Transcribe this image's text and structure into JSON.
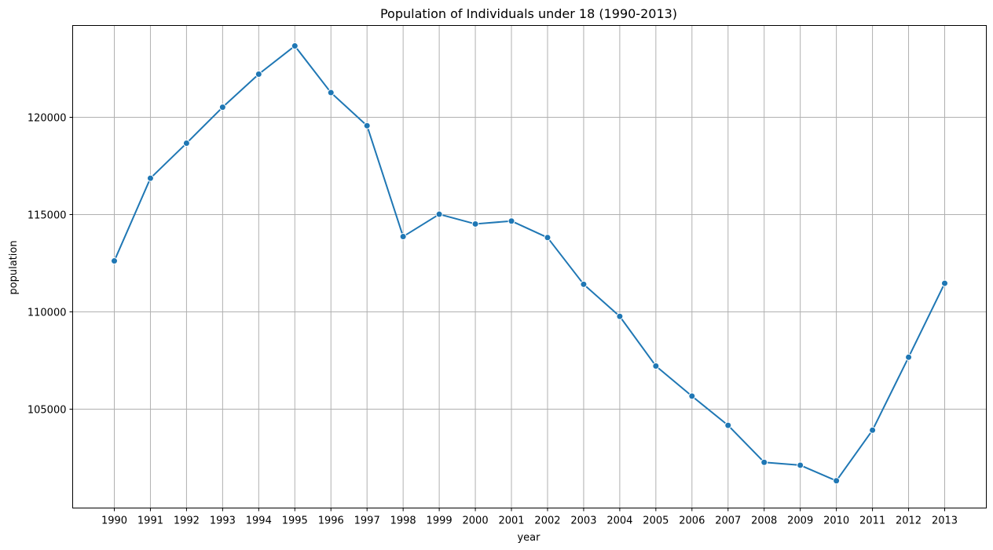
{
  "chart_data": {
    "type": "line",
    "title": "Population of Individuals under 18 (1990-2013)",
    "xlabel": "year",
    "ylabel": "population",
    "x": [
      1990,
      1991,
      1992,
      1993,
      1994,
      1995,
      1996,
      1997,
      1998,
      1999,
      2000,
      2001,
      2002,
      2003,
      2004,
      2005,
      2006,
      2007,
      2008,
      2009,
      2010,
      2011,
      2012,
      2013
    ],
    "x_tick_labels": [
      "1990",
      "1991",
      "1992",
      "1993",
      "1994",
      "1995",
      "1996",
      "1997",
      "1998",
      "1999",
      "2000",
      "2001",
      "2002",
      "2003",
      "2004",
      "2005",
      "2006",
      "2007",
      "2008",
      "2009",
      "2010",
      "2011",
      "2012",
      "2013"
    ],
    "series": [
      {
        "values": [
          112600,
          116850,
          118650,
          120500,
          122200,
          123650,
          121250,
          119550,
          113850,
          115000,
          114500,
          114650,
          113800,
          111400,
          109750,
          107200,
          105650,
          104150,
          102250,
          102100,
          101300,
          103900,
          107650,
          111450
        ],
        "color": "#1f77b4",
        "marker": "circle"
      }
    ],
    "y_ticks": [
      105000,
      110000,
      115000,
      120000
    ],
    "y_tick_labels": [
      "105000",
      "110000",
      "115000",
      "120000"
    ],
    "ylim": [
      99900,
      124700
    ],
    "grid": true,
    "grid_color": "#b0b0b0"
  }
}
